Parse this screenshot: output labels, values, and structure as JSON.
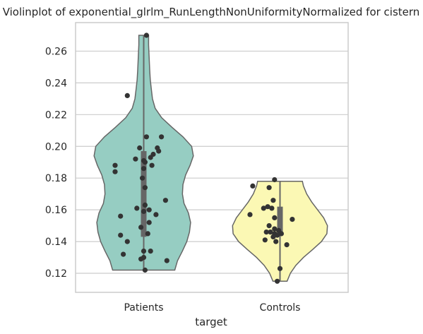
{
  "chart_data": {
    "type": "violin",
    "title": "Violinplot of exponential_glrlm_RunLengthNonUniformityNormalized for cistern",
    "xlabel": "target",
    "ylabel": "",
    "categories": [
      "Patients",
      "Controls"
    ],
    "ylim": [
      0.108,
      0.278
    ],
    "yticks": [
      0.12,
      0.14,
      0.16,
      0.18,
      0.2,
      0.22,
      0.24,
      0.26
    ],
    "ytick_labels": [
      "0.12",
      "0.14",
      "0.16",
      "0.18",
      "0.20",
      "0.22",
      "0.24",
      "0.26"
    ],
    "grid": true,
    "colors": {
      "Patients": "#96cdc2",
      "Controls": "#fbf8b4",
      "violin_edge": "#666666",
      "points": "#333333",
      "box": "#666666",
      "grid": "#cccccc",
      "frame": "#cccccc"
    },
    "series": [
      {
        "name": "Patients",
        "min": 0.122,
        "max": 0.27,
        "q1": 0.143,
        "median": 0.181,
        "q3": 0.197,
        "density": [
          {
            "y": 0.122,
            "w": 0.57
          },
          {
            "y": 0.128,
            "w": 0.62
          },
          {
            "y": 0.134,
            "w": 0.71
          },
          {
            "y": 0.14,
            "w": 0.79
          },
          {
            "y": 0.146,
            "w": 0.84
          },
          {
            "y": 0.152,
            "w": 0.86
          },
          {
            "y": 0.158,
            "w": 0.82
          },
          {
            "y": 0.164,
            "w": 0.74
          },
          {
            "y": 0.17,
            "w": 0.71
          },
          {
            "y": 0.176,
            "w": 0.72
          },
          {
            "y": 0.182,
            "w": 0.77
          },
          {
            "y": 0.188,
            "w": 0.85
          },
          {
            "y": 0.194,
            "w": 0.91
          },
          {
            "y": 0.2,
            "w": 0.88
          },
          {
            "y": 0.206,
            "w": 0.72
          },
          {
            "y": 0.212,
            "w": 0.52
          },
          {
            "y": 0.218,
            "w": 0.33
          },
          {
            "y": 0.224,
            "w": 0.21
          },
          {
            "y": 0.23,
            "w": 0.16
          },
          {
            "y": 0.236,
            "w": 0.14
          },
          {
            "y": 0.242,
            "w": 0.12
          },
          {
            "y": 0.248,
            "w": 0.11
          },
          {
            "y": 0.256,
            "w": 0.1
          },
          {
            "y": 0.264,
            "w": 0.09
          },
          {
            "y": 0.27,
            "w": 0.09
          }
        ],
        "points": [
          [
            0.02,
            0.27
          ],
          [
            -0.12,
            0.232
          ],
          [
            0.02,
            0.206
          ],
          [
            0.13,
            0.206
          ],
          [
            -0.03,
            0.199
          ],
          [
            0.1,
            0.199
          ],
          [
            0.11,
            0.197
          ],
          [
            0.07,
            0.195
          ],
          [
            0.05,
            0.193
          ],
          [
            -0.06,
            0.192
          ],
          [
            0.0,
            0.191
          ],
          [
            0.01,
            0.19
          ],
          [
            0.06,
            0.188
          ],
          [
            -0.21,
            0.188
          ],
          [
            -0.21,
            0.184
          ],
          [
            0.0,
            0.186
          ],
          [
            -0.01,
            0.18
          ],
          [
            0.01,
            0.174
          ],
          [
            0.16,
            0.166
          ],
          [
            0.01,
            0.163
          ],
          [
            -0.05,
            0.161
          ],
          [
            0.04,
            0.16
          ],
          [
            0.0,
            0.159
          ],
          [
            0.09,
            0.157
          ],
          [
            -0.17,
            0.156
          ],
          [
            0.04,
            0.152
          ],
          [
            -0.02,
            0.149
          ],
          [
            0.03,
            0.145
          ],
          [
            -0.17,
            0.144
          ],
          [
            -0.12,
            0.14
          ],
          [
            0.0,
            0.134
          ],
          [
            0.05,
            0.134
          ],
          [
            -0.15,
            0.132
          ],
          [
            0.0,
            0.13
          ],
          [
            -0.02,
            0.129
          ],
          [
            0.17,
            0.128
          ],
          [
            0.01,
            0.122
          ]
        ]
      },
      {
        "name": "Controls",
        "min": 0.115,
        "max": 0.178,
        "q1": 0.145,
        "median": 0.152,
        "q3": 0.162,
        "density": [
          {
            "y": 0.115,
            "w": 0.13
          },
          {
            "y": 0.12,
            "w": 0.19
          },
          {
            "y": 0.125,
            "w": 0.29
          },
          {
            "y": 0.13,
            "w": 0.43
          },
          {
            "y": 0.135,
            "w": 0.6
          },
          {
            "y": 0.14,
            "w": 0.76
          },
          {
            "y": 0.145,
            "w": 0.86
          },
          {
            "y": 0.15,
            "w": 0.87
          },
          {
            "y": 0.155,
            "w": 0.8
          },
          {
            "y": 0.16,
            "w": 0.69
          },
          {
            "y": 0.165,
            "w": 0.58
          },
          {
            "y": 0.17,
            "w": 0.49
          },
          {
            "y": 0.175,
            "w": 0.43
          },
          {
            "y": 0.178,
            "w": 0.41
          }
        ],
        "points": [
          [
            -0.04,
            0.179
          ],
          [
            -0.2,
            0.175
          ],
          [
            -0.08,
            0.174
          ],
          [
            -0.05,
            0.166
          ],
          [
            -0.12,
            0.161
          ],
          [
            -0.09,
            0.162
          ],
          [
            -0.06,
            0.161
          ],
          [
            -0.22,
            0.157
          ],
          [
            0.09,
            0.154
          ],
          [
            -0.04,
            0.155
          ],
          [
            -0.08,
            0.15
          ],
          [
            -0.04,
            0.148
          ],
          [
            -0.01,
            0.147
          ],
          [
            -0.07,
            0.146
          ],
          [
            -0.1,
            0.146
          ],
          [
            -0.04,
            0.145
          ],
          [
            0.01,
            0.145
          ],
          [
            -0.02,
            0.144
          ],
          [
            -0.05,
            0.143
          ],
          [
            -0.11,
            0.141
          ],
          [
            -0.03,
            0.14
          ],
          [
            0.05,
            0.138
          ],
          [
            0.0,
            0.123
          ],
          [
            -0.02,
            0.115
          ]
        ]
      }
    ]
  }
}
